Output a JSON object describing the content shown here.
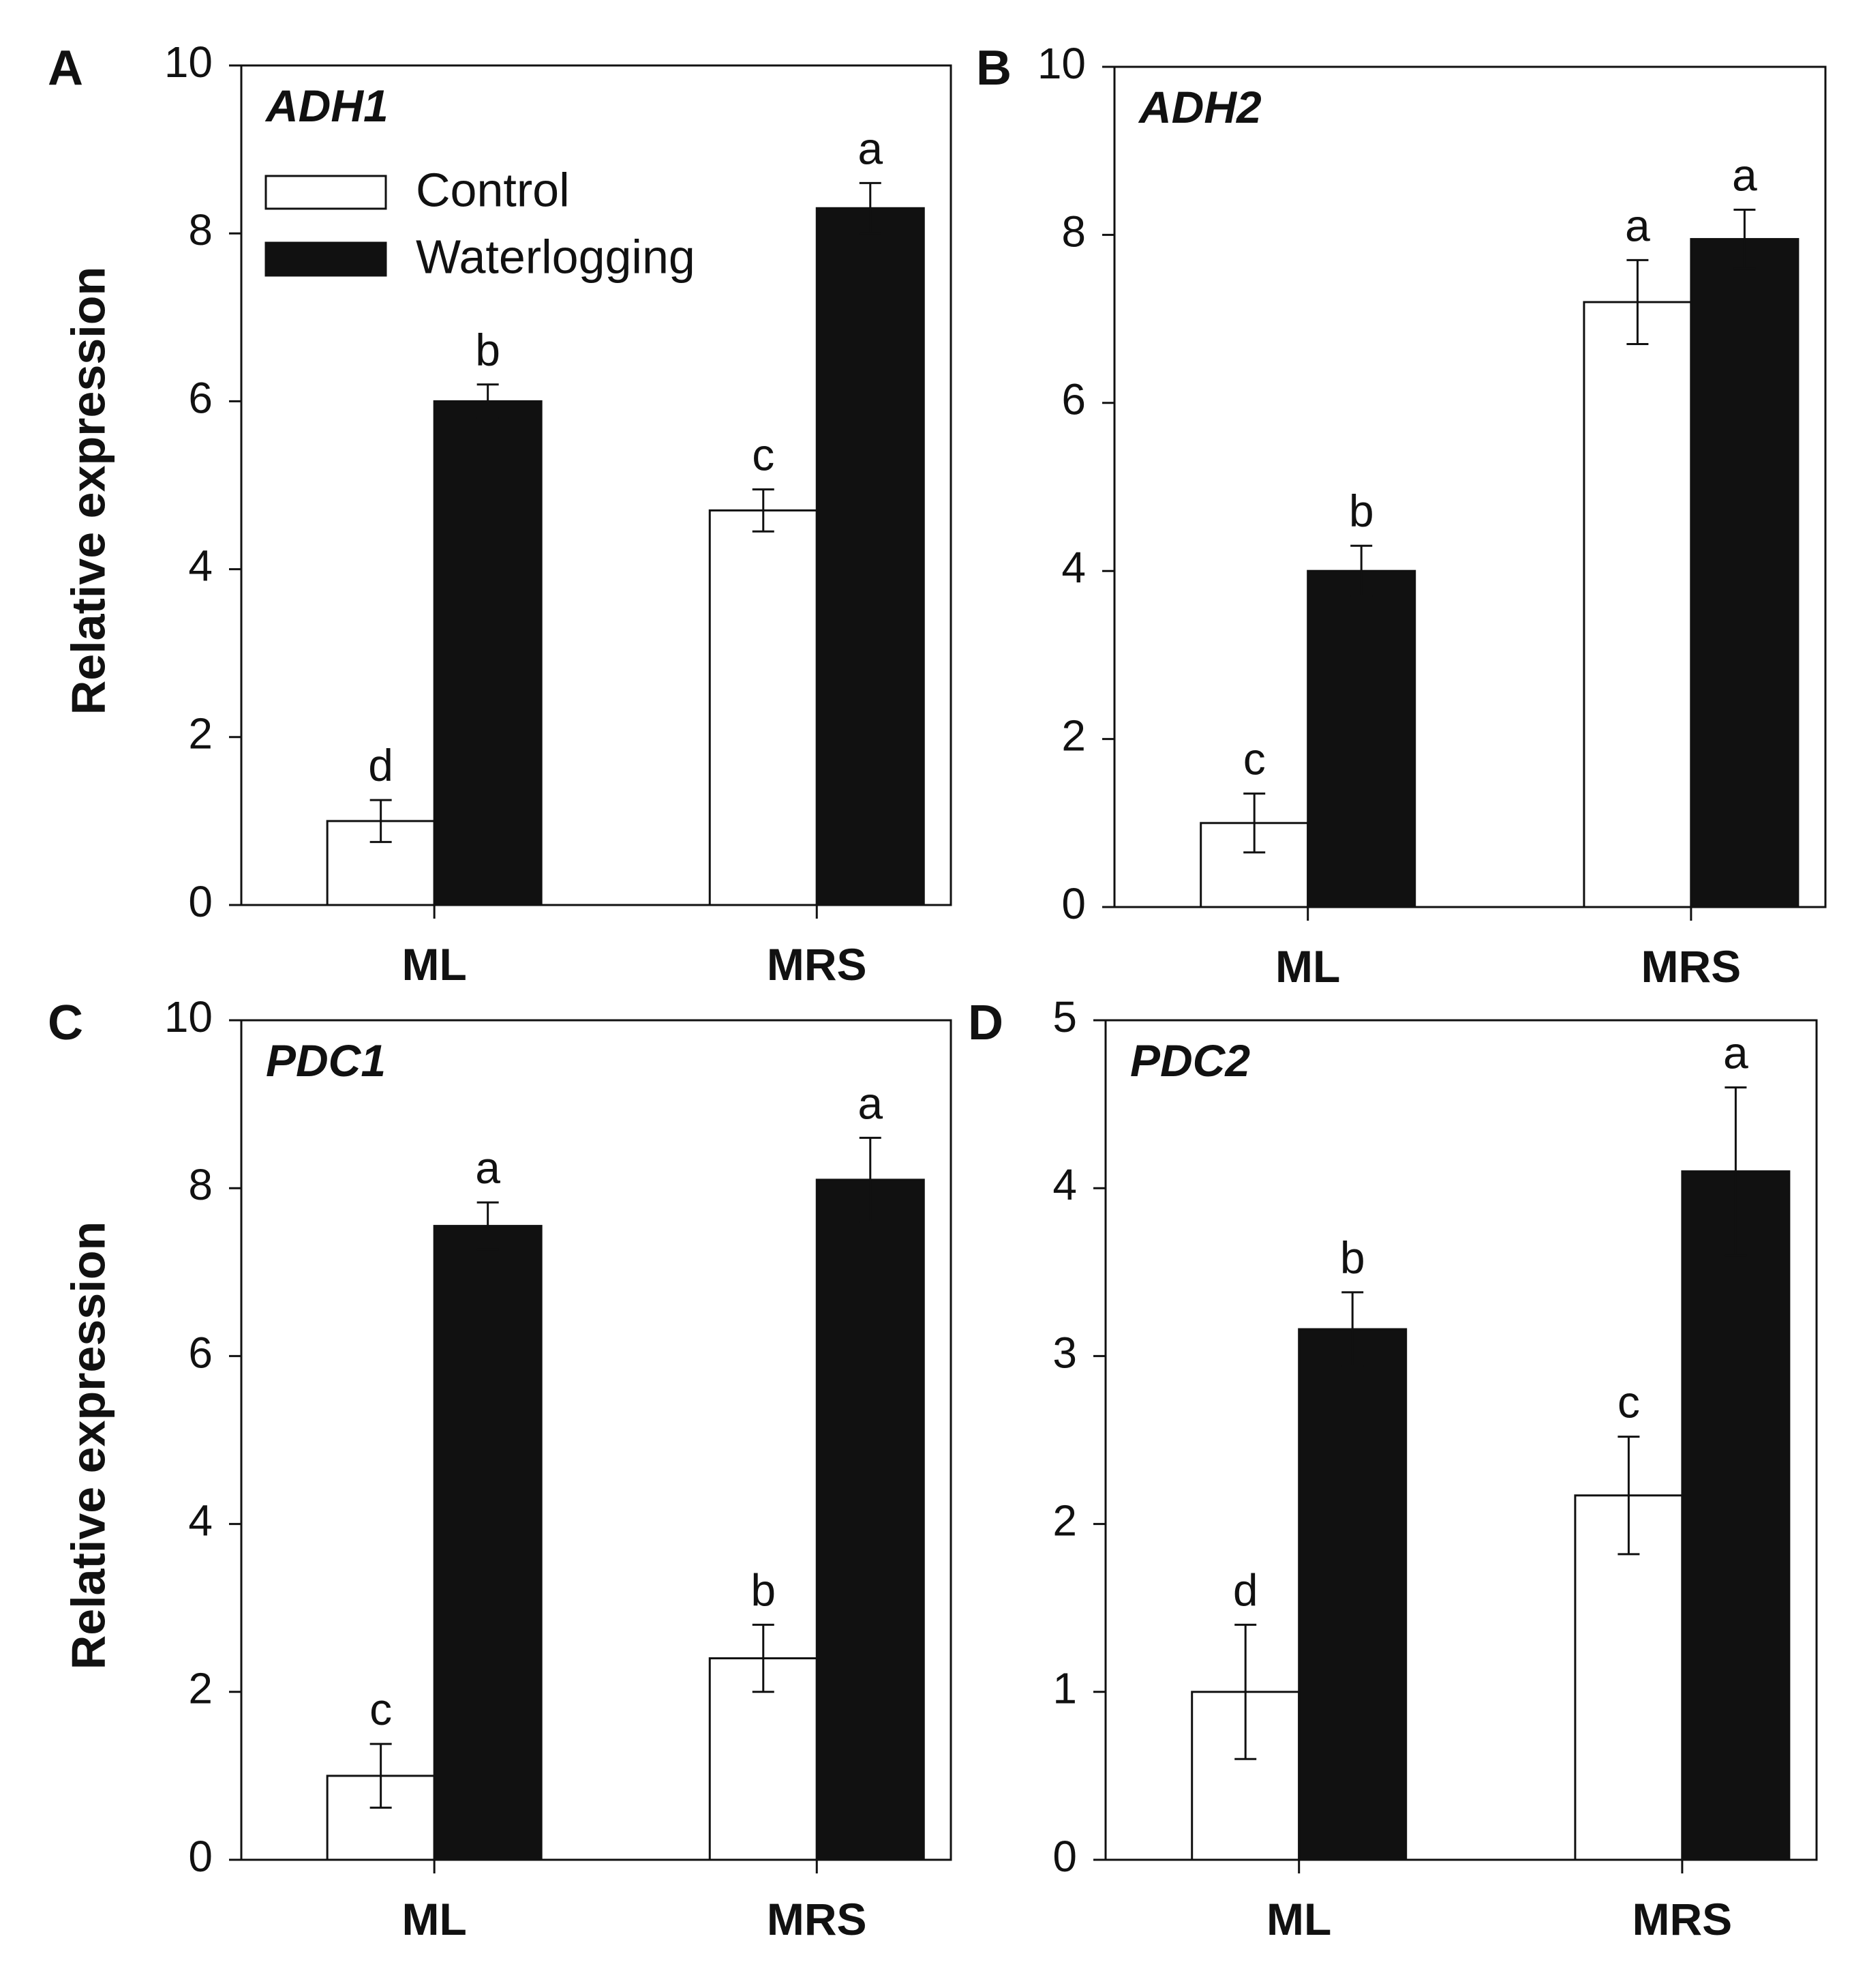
{
  "legend": {
    "position": "top-left (panel A)",
    "entries": [
      {
        "name": "Control",
        "fill": "#ffffff"
      },
      {
        "name": "Waterlogging",
        "fill": "#111111"
      }
    ]
  },
  "colors": {
    "control": "#ffffff",
    "waterlogging": "#111111",
    "axis": "#111111"
  },
  "chart_data": [
    {
      "panel": "A",
      "type": "bar",
      "title": "ADH1",
      "categories": [
        "ML",
        "MRS"
      ],
      "ylabel": "Relative expression",
      "ylim": [
        0,
        10
      ],
      "yticks": [
        "0",
        "2",
        "4",
        "6",
        "8",
        "10"
      ],
      "grid": false,
      "series": [
        {
          "name": "Control",
          "values": [
            1.0,
            4.7
          ],
          "errors": [
            0.25,
            0.25
          ],
          "letters": [
            "d",
            "c"
          ]
        },
        {
          "name": "Waterlogging",
          "values": [
            6.0,
            8.3
          ],
          "errors": [
            0.2,
            0.3
          ],
          "letters": [
            "b",
            "a"
          ]
        }
      ]
    },
    {
      "panel": "B",
      "type": "bar",
      "title": "ADH2",
      "categories": [
        "ML",
        "MRS"
      ],
      "ylabel": "",
      "ylim": [
        0,
        10
      ],
      "yticks": [
        "0",
        "2",
        "4",
        "6",
        "8",
        "10"
      ],
      "grid": false,
      "series": [
        {
          "name": "Control",
          "values": [
            1.0,
            7.2
          ],
          "errors": [
            0.35,
            0.5
          ],
          "letters": [
            "c",
            "a"
          ]
        },
        {
          "name": "Waterlogging",
          "values": [
            4.0,
            7.95
          ],
          "errors": [
            0.3,
            0.35
          ],
          "letters": [
            "b",
            "a"
          ]
        }
      ]
    },
    {
      "panel": "C",
      "type": "bar",
      "title": "PDC1",
      "categories": [
        "ML",
        "MRS"
      ],
      "ylabel": "Relative expression",
      "ylim": [
        0,
        10
      ],
      "yticks": [
        "0",
        "2",
        "4",
        "6",
        "8",
        "10"
      ],
      "grid": false,
      "series": [
        {
          "name": "Control",
          "values": [
            1.0,
            2.4
          ],
          "errors": [
            0.38,
            0.4
          ],
          "letters": [
            "c",
            "b"
          ]
        },
        {
          "name": "Waterlogging",
          "values": [
            7.55,
            8.1
          ],
          "errors": [
            0.28,
            0.5
          ],
          "letters": [
            "a",
            "a"
          ]
        }
      ]
    },
    {
      "panel": "D",
      "type": "bar",
      "title": "PDC2",
      "categories": [
        "ML",
        "MRS"
      ],
      "ylabel": "",
      "ylim": [
        0,
        5
      ],
      "yticks": [
        "0",
        "1",
        "2",
        "3",
        "4",
        "5"
      ],
      "grid": false,
      "series": [
        {
          "name": "Control",
          "values": [
            1.0,
            2.17
          ],
          "errors": [
            0.4,
            0.35
          ],
          "letters": [
            "d",
            "c"
          ]
        },
        {
          "name": "Waterlogging",
          "values": [
            3.16,
            4.1
          ],
          "errors": [
            0.22,
            0.5
          ],
          "letters": [
            "b",
            "a"
          ]
        }
      ]
    }
  ]
}
